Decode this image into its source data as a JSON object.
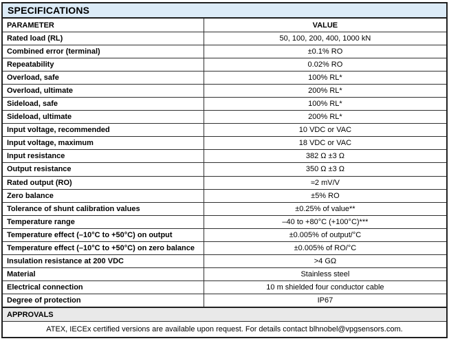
{
  "table": {
    "title": "SPECIFICATIONS",
    "columns": [
      "PARAMETER",
      "VALUE"
    ],
    "rows": [
      {
        "parameter": "Rated load (RL)",
        "value": "50, 100, 200, 400, 1000 kN"
      },
      {
        "parameter": "Combined error (terminal)",
        "value": "±0.1% RO"
      },
      {
        "parameter": "Repeatability",
        "value": "0.02% RO"
      },
      {
        "parameter": "Overload, safe",
        "value": "100% RL*"
      },
      {
        "parameter": "Overload, ultimate",
        "value": "200% RL*"
      },
      {
        "parameter": "Sideload, safe",
        "value": "100% RL*"
      },
      {
        "parameter": "Sideload, ultimate",
        "value": "200% RL*"
      },
      {
        "parameter": "Input voltage, recommended",
        "value": "10 VDC or VAC"
      },
      {
        "parameter": "Input voltage, maximum",
        "value": "18 VDC or VAC"
      },
      {
        "parameter": "Input resistance",
        "value": "382 Ω ±3 Ω"
      },
      {
        "parameter": "Output resistance",
        "value": "350 Ω ±3 Ω"
      },
      {
        "parameter": "Rated output (RO)",
        "value": "≈2 mV/V"
      },
      {
        "parameter": "Zero balance",
        "value": "±5% RO"
      },
      {
        "parameter": "Tolerance of shunt calibration values",
        "value": "±0.25% of value**"
      },
      {
        "parameter": "Temperature range",
        "value": "–40 to +80°C (+100°C)***"
      },
      {
        "parameter": "Temperature effect (–10°C to +50°C) on output",
        "value": "±0.005% of output/°C"
      },
      {
        "parameter": "Temperature effect (–10°C to +50°C) on zero balance",
        "value": "±0.005% of RO/°C"
      },
      {
        "parameter": "Insulation resistance at 200 VDC",
        "value": ">4 GΩ"
      },
      {
        "parameter": "Material",
        "value": "Stainless steel"
      },
      {
        "parameter": "Electrical connection",
        "value": "10 m shielded four conductor cable"
      },
      {
        "parameter": "Degree of protection",
        "value": "IP67"
      }
    ],
    "approvals": {
      "title": "APPROVALS",
      "note": "ATEX, IECEx certified versions are available upon request. For details contact blhnobel@vpgsensors.com."
    },
    "colors": {
      "header_bg": "#dcebf7",
      "approvals_bg": "#e9e9e9",
      "border": "#1f1f1f",
      "row_line": "#2f2f2f"
    }
  }
}
